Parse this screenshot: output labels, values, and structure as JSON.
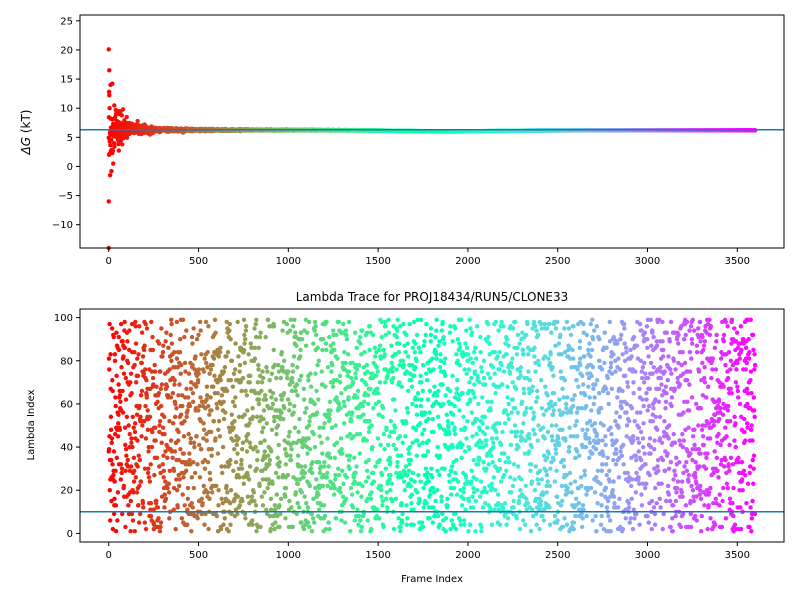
{
  "chart_data": [
    {
      "type": "scatter",
      "title": "",
      "xlabel": "",
      "ylabel_symbol": "ΔG",
      "ylabel_unit": "(kT)",
      "xlim": [
        -160,
        3760
      ],
      "ylim": [
        -14,
        26
      ],
      "xticks": [
        0,
        500,
        1000,
        1500,
        2000,
        2500,
        3000,
        3500
      ],
      "yticks": [
        -10,
        -5,
        0,
        5,
        10,
        15,
        20,
        25
      ],
      "hline": 6.3,
      "hline_color": "#1f77b4",
      "colormap": "rainbow",
      "n_frames": 3600,
      "series_summary": {
        "early_outliers": [
          [
            0,
            20.1
          ],
          [
            0,
            -6
          ],
          [
            0,
            -14
          ],
          [
            3,
            16.5
          ],
          [
            10,
            14
          ],
          [
            20,
            14.2
          ],
          [
            5,
            10
          ],
          [
            8,
            -1.5
          ],
          [
            15,
            -0.8
          ],
          [
            25,
            0.5
          ],
          [
            2,
            2
          ],
          [
            30,
            4
          ],
          [
            40,
            9
          ],
          [
            60,
            9.5
          ],
          [
            80,
            9.8
          ],
          [
            100,
            8.5
          ]
        ],
        "converged_value": 6.2
      }
    },
    {
      "type": "scatter",
      "title": "Lambda Trace for PROJ18434/RUN5/CLONE33",
      "xlabel": "Frame Index",
      "ylabel": "Lambda Index",
      "xlim": [
        -160,
        3760
      ],
      "ylim": [
        -4,
        104
      ],
      "xticks": [
        0,
        500,
        1000,
        1500,
        2000,
        2500,
        3000,
        3500
      ],
      "yticks": [
        0,
        20,
        40,
        60,
        80,
        100
      ],
      "hline": 10,
      "hline_color": "#1f77b4",
      "colormap": "rainbow",
      "n_frames": 3600,
      "lambda_range": [
        1,
        99
      ]
    }
  ]
}
